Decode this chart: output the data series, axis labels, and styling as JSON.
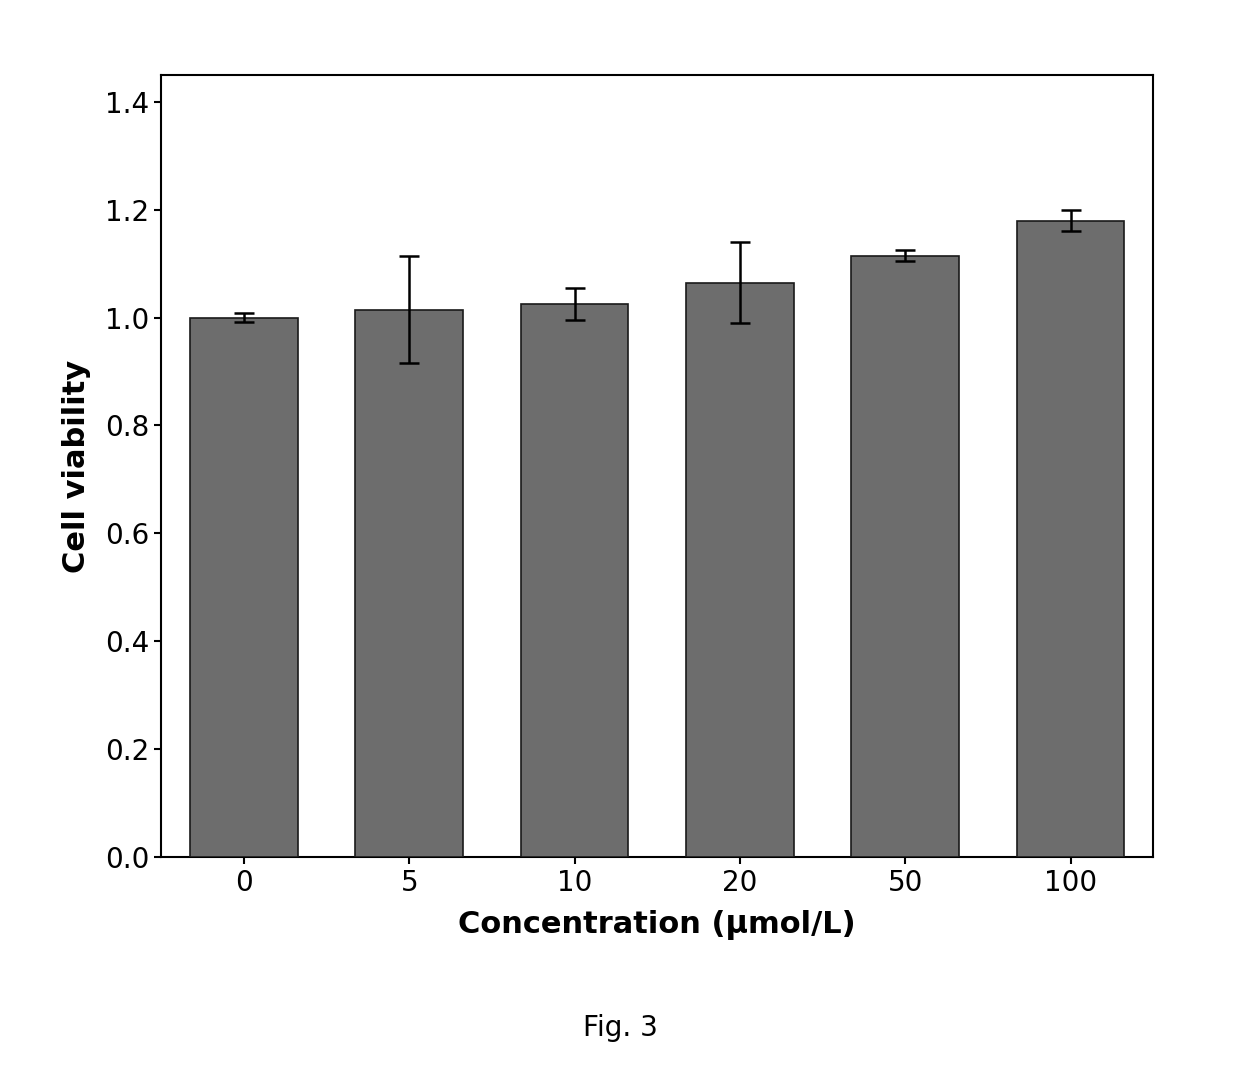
{
  "categories": [
    "0",
    "5",
    "10",
    "20",
    "50",
    "100"
  ],
  "values": [
    1.0,
    1.015,
    1.025,
    1.065,
    1.115,
    1.18
  ],
  "errors": [
    0.008,
    0.1,
    0.03,
    0.075,
    0.01,
    0.02
  ],
  "bar_color": "#6d6d6d",
  "bar_edgecolor": "#1a1a1a",
  "bar_width": 0.65,
  "ylabel": "Cell viability",
  "xlabel": "Concentration (μmol/L)",
  "ylim": [
    0.0,
    1.45
  ],
  "yticks": [
    0.0,
    0.2,
    0.4,
    0.6,
    0.8,
    1.0,
    1.2,
    1.4
  ],
  "caption": "Fig. 3",
  "background_color": "#ffffff",
  "plot_background": "#ffffff",
  "ylabel_fontsize": 22,
  "xlabel_fontsize": 22,
  "tick_fontsize": 20,
  "caption_fontsize": 20,
  "error_capsize": 7,
  "error_linewidth": 1.8,
  "error_color": "black"
}
